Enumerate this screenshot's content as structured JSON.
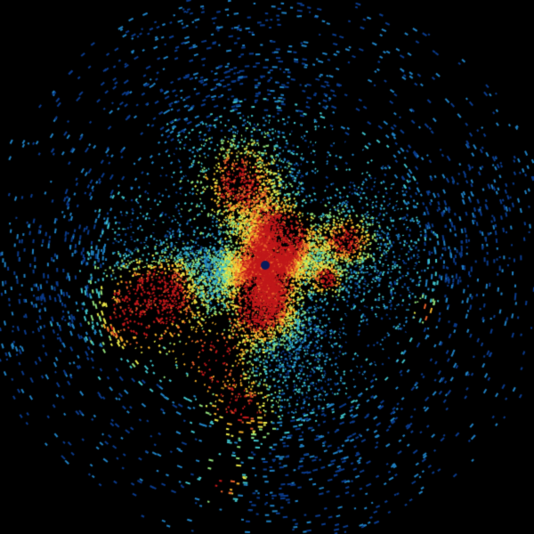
{
  "image": {
    "kind": "radar-scan",
    "background": "#000000",
    "palette": [
      "#0a3a8a",
      "#1f7fc0",
      "#3fc1c9",
      "#8fdc7a",
      "#e8e84a",
      "#f5b02a",
      "#e8602a",
      "#c0181a"
    ],
    "center_marker_color": "#0a1a5a"
  }
}
